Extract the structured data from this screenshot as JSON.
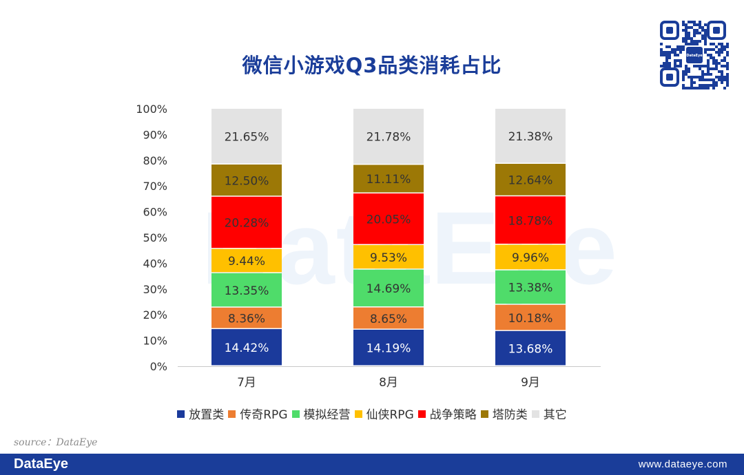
{
  "title": "微信小游戏Q3品类消耗占比",
  "watermark": "DataEye",
  "qr": {
    "label": "DataEye"
  },
  "source": "source：DataEye",
  "footer": {
    "logo": "DataEye",
    "url": "www.dataeye.com"
  },
  "chart_data": {
    "type": "bar",
    "stacked": true,
    "categories": [
      "7月",
      "8月",
      "9月"
    ],
    "ylim": [
      0,
      100
    ],
    "yticks": [
      "0%",
      "10%",
      "20%",
      "30%",
      "40%",
      "50%",
      "60%",
      "70%",
      "80%",
      "90%",
      "100%"
    ],
    "legend_position": "bottom",
    "grid": false,
    "series": [
      {
        "name": "放置类",
        "color": "#1b3a9b",
        "text_color": "#ffffff",
        "values": [
          14.42,
          14.19,
          13.68
        ],
        "labels": [
          "14.42%",
          "14.19%",
          "13.68%"
        ]
      },
      {
        "name": "传奇RPG",
        "color": "#ed7d31",
        "text_color": "#333333",
        "values": [
          8.36,
          8.65,
          10.18
        ],
        "labels": [
          "8.36%",
          "8.65%",
          "10.18%"
        ]
      },
      {
        "name": "模拟经营",
        "color": "#4fdc6a",
        "text_color": "#333333",
        "values": [
          13.35,
          14.69,
          13.38
        ],
        "labels": [
          "13.35%",
          "14.69%",
          "13.38%"
        ]
      },
      {
        "name": "仙侠RPG",
        "color": "#ffc000",
        "text_color": "#333333",
        "values": [
          9.44,
          9.53,
          9.96
        ],
        "labels": [
          "9.44%",
          "9.53%",
          "9.96%"
        ]
      },
      {
        "name": "战争策略",
        "color": "#ff0000",
        "text_color": "#333333",
        "values": [
          20.28,
          20.05,
          18.78
        ],
        "labels": [
          "20.28%",
          "20.05%",
          "18.78%"
        ]
      },
      {
        "name": "塔防类",
        "color": "#9c7806",
        "text_color": "#333333",
        "values": [
          12.5,
          11.11,
          12.64
        ],
        "labels": [
          "12.50%",
          "11.11%",
          "12.64%"
        ]
      },
      {
        "name": "其它",
        "color": "#e3e3e3",
        "text_color": "#333333",
        "values": [
          21.65,
          21.78,
          21.38
        ],
        "labels": [
          "21.65%",
          "21.78%",
          "21.38%"
        ]
      }
    ]
  }
}
